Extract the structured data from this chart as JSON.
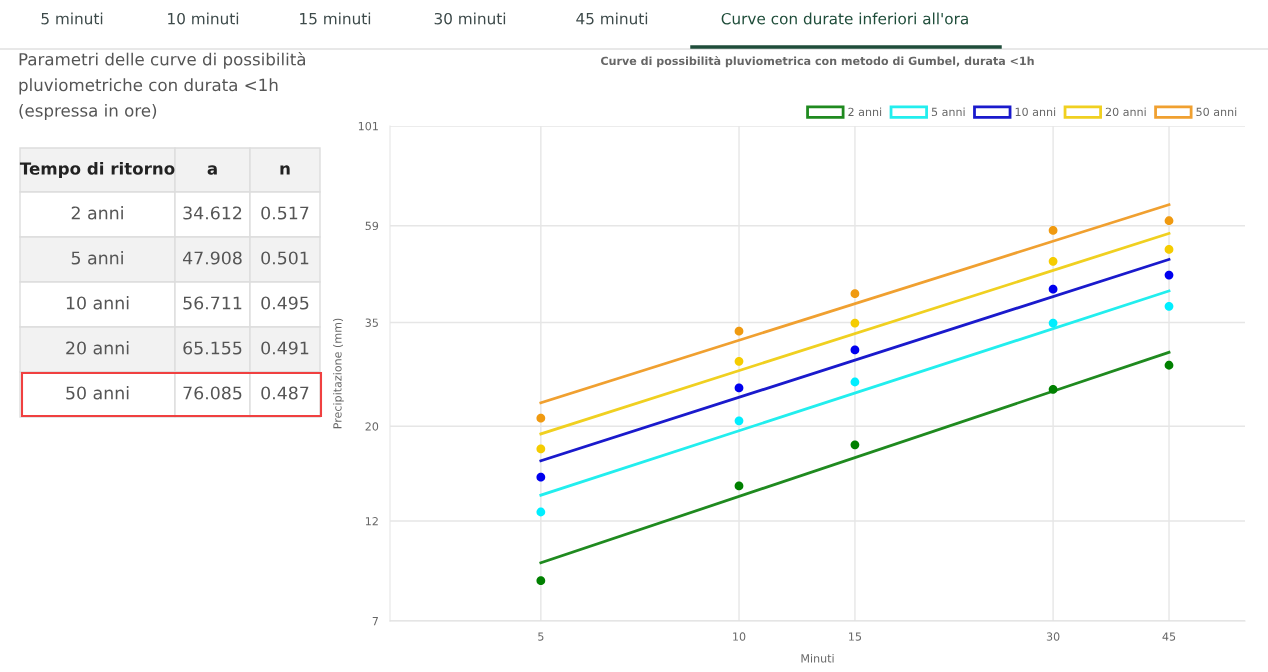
{
  "chart_data": [
    {
      "type": "other",
      "title": "Parametri delle curve di possibilità\npluviometriche con durata <1h\n(espressa in ore)",
      "annotations": [
        "5 minuti",
        "10 minuti",
        "15 minuti",
        "30 minuti",
        "45 minuti",
        "Curve con durate inferiori all'ora",
        "Tempo di ritorno",
        "a",
        "n",
        "2 anni",
        "34.612",
        "0.517",
        "5 anni",
        "47.908",
        "0.501",
        "10 anni",
        "56.711",
        "0.495",
        "20 anni",
        "65.155",
        "0.491",
        "50 anni",
        "76.085",
        "0.487"
      ]
    },
    {
      "type": "scatter",
      "title": "Curve di possibilità pluviometrica con metodo di Gumbel, durata <1h",
      "xlabel": "Minuti",
      "ylabel": "Precipitazione (mm)",
      "log": "xy",
      "xlim": [
        2.95,
        58.7
      ],
      "ylim": [
        7,
        101
      ],
      "xticks": [
        5,
        10,
        15,
        30,
        45
      ],
      "yticks": [
        7,
        12,
        20,
        35,
        59,
        101
      ],
      "grid": true,
      "legend": "top right",
      "marker": "circle",
      "series": [
        {
          "type": "line",
          "name": "2 anni",
          "color": "#1f8a1f",
          "marker": "none",
          "x": [
            5,
            45
          ],
          "values": [
            9.58,
            29.8
          ]
        },
        {
          "type": "line",
          "name": "5 anni",
          "color": "#22eeee",
          "marker": "none",
          "x": [
            5,
            45
          ],
          "values": [
            13.8,
            41.5
          ]
        },
        {
          "type": "line",
          "name": "10 anni",
          "color": "#1a1acc",
          "marker": "none",
          "x": [
            5,
            45
          ],
          "values": [
            16.6,
            49.2
          ]
        },
        {
          "type": "line",
          "name": "20 anni",
          "color": "#f0d020",
          "marker": "none",
          "x": [
            5,
            45
          ],
          "values": [
            19.2,
            56.6
          ]
        },
        {
          "type": "line",
          "name": "50 anni",
          "color": "#f0a030",
          "marker": "none",
          "x": [
            5,
            45
          ],
          "values": [
            22.7,
            66.1
          ]
        },
        {
          "type": "scatter",
          "color": "#008000",
          "x": [
            5,
            10,
            15,
            30,
            45
          ],
          "values": [
            8.7,
            14.5,
            18.1,
            24.4,
            27.8
          ]
        },
        {
          "type": "scatter",
          "color": "#00eeff",
          "x": [
            5,
            10,
            15,
            30,
            45
          ],
          "values": [
            12.6,
            20.6,
            25.4,
            34.9,
            38.2
          ]
        },
        {
          "type": "scatter",
          "color": "#0000ee",
          "x": [
            5,
            10,
            15,
            30,
            45
          ],
          "values": [
            15.2,
            24.6,
            30.2,
            41.9,
            45.2
          ]
        },
        {
          "type": "scatter",
          "color": "#f5cc00",
          "x": [
            5,
            10,
            15,
            30,
            45
          ],
          "values": [
            17.7,
            28.4,
            34.9,
            48.7,
            51.9
          ]
        },
        {
          "type": "scatter",
          "color": "#f09a10",
          "x": [
            5,
            10,
            15,
            30,
            45
          ],
          "values": [
            20.9,
            33.4,
            40.9,
            57.5,
            60.6
          ]
        }
      ]
    }
  ]
}
